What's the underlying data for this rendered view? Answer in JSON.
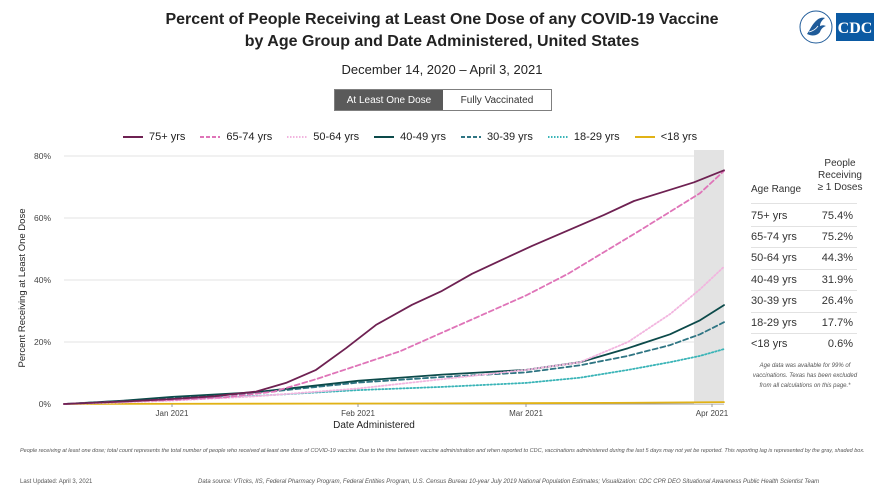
{
  "header": {
    "title_line1": "Percent of People Receiving at Least One Dose of any COVID-19 Vaccine",
    "title_line2": "by Age Group and Date Administered, United States",
    "date_range": "December 14, 2020 – April 3, 2021",
    "logo_text": "CDC"
  },
  "toggle": {
    "active_label": "At Least One Dose",
    "inactive_label": "Fully Vaccinated"
  },
  "legend": [
    {
      "label": "75+ yrs",
      "color": "#6e2152",
      "dash": "solid"
    },
    {
      "label": "65-74 yrs",
      "color": "#df74b8",
      "dash": "dashed"
    },
    {
      "label": "50-64 yrs",
      "color": "#f2b5df",
      "dash": "dotted"
    },
    {
      "label": "40-49 yrs",
      "color": "#0c4a4a",
      "dash": "solid"
    },
    {
      "label": "30-39 yrs",
      "color": "#2f7583",
      "dash": "dashed"
    },
    {
      "label": "18-29 yrs",
      "color": "#39b4b7",
      "dash": "dotted"
    },
    {
      "label": "<18 yrs",
      "color": "#e1b215",
      "dash": "solid"
    }
  ],
  "table": {
    "header_line1": "People",
    "header_line2": "Receiving",
    "header_line3": "≥ 1 Doses",
    "age_header": "Age Range",
    "rows": [
      {
        "age": "75+ yrs",
        "value": "75.4%"
      },
      {
        "age": "65-74 yrs",
        "value": "75.2%"
      },
      {
        "age": "50-64 yrs",
        "value": "44.3%"
      },
      {
        "age": "40-49 yrs",
        "value": "31.9%"
      },
      {
        "age": "30-39 yrs",
        "value": "26.4%"
      },
      {
        "age": "18-29 yrs",
        "value": "17.7%"
      },
      {
        "age": "<18 yrs",
        "value": "0.6%"
      }
    ],
    "note": "Age data was available for 99% of vaccinations. Texas has been excluded from all calculations on this page.*"
  },
  "footnote": "People receiving at least one dose; total count represents the total number of people who received at least one dose of COVID-19 vaccine. Due to the time between vaccine administration and when reported to CDC, vaccinations administered during the last 5 days may not yet be reported. This reporting lag is represented by the gray, shaded box.",
  "last_updated": "Last Updated: April 3, 2021",
  "data_source": "Data source: VTrcks, IIS, Federal Pharmacy Program, Federal Entities Program, U.S. Census Bureau 10-year July 2019 National Population Estimates; Visualization: CDC CPR DEO Situational Awareness Public Health Scientist Team",
  "chart_data": {
    "type": "line",
    "xlabel": "Date Administered",
    "ylabel": "Percent Receiving at Least One Dose",
    "x_range": [
      "2020-12-14",
      "2021-04-03"
    ],
    "ylim": [
      0,
      80
    ],
    "y_ticks": [
      "0%",
      "20%",
      "40%",
      "60%",
      "80%"
    ],
    "x_ticks": [
      {
        "date": "2021-01-01",
        "label": "Jan 2021"
      },
      {
        "date": "2021-02-01",
        "label": "Feb 2021"
      },
      {
        "date": "2021-03-01",
        "label": "Mar 2021"
      },
      {
        "date": "2021-04-01",
        "label": "Apr 2021"
      }
    ],
    "grid": "horizontal",
    "shaded_reporting_lag": [
      "2021-03-29",
      "2021-04-03"
    ],
    "series": [
      {
        "name": "75+ yrs",
        "color": "#6e2152",
        "dash": "solid",
        "points": [
          [
            "2020-12-14",
            0
          ],
          [
            "2020-12-24",
            0.8
          ],
          [
            "2021-01-01",
            1.6
          ],
          [
            "2021-01-08",
            2.5
          ],
          [
            "2021-01-15",
            4
          ],
          [
            "2021-01-20",
            6.8
          ],
          [
            "2021-01-25",
            11
          ],
          [
            "2021-01-30",
            18
          ],
          [
            "2021-02-04",
            25.5
          ],
          [
            "2021-02-10",
            32
          ],
          [
            "2021-02-15",
            36.5
          ],
          [
            "2021-02-20",
            42
          ],
          [
            "2021-02-25",
            46.5
          ],
          [
            "2021-03-02",
            51
          ],
          [
            "2021-03-08",
            56
          ],
          [
            "2021-03-14",
            61
          ],
          [
            "2021-03-19",
            65.5
          ],
          [
            "2021-03-24",
            68.5
          ],
          [
            "2021-03-29",
            71.5
          ],
          [
            "2021-04-03",
            75.4
          ]
        ]
      },
      {
        "name": "65-74 yrs",
        "color": "#df74b8",
        "dash": "dashed",
        "points": [
          [
            "2020-12-14",
            0
          ],
          [
            "2020-12-24",
            0.8
          ],
          [
            "2021-01-01",
            1.3
          ],
          [
            "2021-01-10",
            2.2
          ],
          [
            "2021-01-18",
            4
          ],
          [
            "2021-01-25",
            8
          ],
          [
            "2021-02-01",
            12.5
          ],
          [
            "2021-02-08",
            17
          ],
          [
            "2021-02-15",
            23
          ],
          [
            "2021-02-22",
            29
          ],
          [
            "2021-03-01",
            35
          ],
          [
            "2021-03-08",
            42
          ],
          [
            "2021-03-14",
            49
          ],
          [
            "2021-03-20",
            56
          ],
          [
            "2021-03-25",
            62
          ],
          [
            "2021-03-30",
            68
          ],
          [
            "2021-04-03",
            75.2
          ]
        ]
      },
      {
        "name": "50-64 yrs",
        "color": "#f2b5df",
        "dash": "dotted",
        "points": [
          [
            "2020-12-14",
            0
          ],
          [
            "2020-12-24",
            0.5
          ],
          [
            "2021-01-01",
            1.1
          ],
          [
            "2021-01-15",
            2.5
          ],
          [
            "2021-02-01",
            5
          ],
          [
            "2021-02-15",
            8
          ],
          [
            "2021-03-01",
            11
          ],
          [
            "2021-03-10",
            13.5
          ],
          [
            "2021-03-18",
            20
          ],
          [
            "2021-03-25",
            29
          ],
          [
            "2021-03-30",
            37
          ],
          [
            "2021-04-03",
            44.3
          ]
        ]
      },
      {
        "name": "40-49 yrs",
        "color": "#0c4a4a",
        "dash": "solid",
        "points": [
          [
            "2020-12-14",
            0
          ],
          [
            "2020-12-24",
            1.1
          ],
          [
            "2021-01-01",
            2.3
          ],
          [
            "2021-01-15",
            3.8
          ],
          [
            "2021-02-01",
            7.5
          ],
          [
            "2021-02-15",
            9.5
          ],
          [
            "2021-03-01",
            11
          ],
          [
            "2021-03-10",
            13.5
          ],
          [
            "2021-03-18",
            18
          ],
          [
            "2021-03-25",
            22.5
          ],
          [
            "2021-03-30",
            27
          ],
          [
            "2021-04-03",
            31.9
          ]
        ]
      },
      {
        "name": "30-39 yrs",
        "color": "#2f7583",
        "dash": "dashed",
        "points": [
          [
            "2020-12-14",
            0
          ],
          [
            "2020-12-24",
            1
          ],
          [
            "2021-01-01",
            2.1
          ],
          [
            "2021-01-15",
            3.5
          ],
          [
            "2021-02-01",
            6.9
          ],
          [
            "2021-02-15",
            8.7
          ],
          [
            "2021-03-01",
            10.2
          ],
          [
            "2021-03-10",
            12.5
          ],
          [
            "2021-03-18",
            15.5
          ],
          [
            "2021-03-25",
            19
          ],
          [
            "2021-03-30",
            22.5
          ],
          [
            "2021-04-03",
            26.4
          ]
        ]
      },
      {
        "name": "18-29 yrs",
        "color": "#39b4b7",
        "dash": "dotted",
        "points": [
          [
            "2020-12-14",
            0
          ],
          [
            "2020-12-24",
            0.6
          ],
          [
            "2021-01-01",
            1.5
          ],
          [
            "2021-01-15",
            2.6
          ],
          [
            "2021-02-01",
            4.5
          ],
          [
            "2021-02-15",
            5.5
          ],
          [
            "2021-03-01",
            6.8
          ],
          [
            "2021-03-10",
            8.5
          ],
          [
            "2021-03-18",
            11
          ],
          [
            "2021-03-25",
            13.5
          ],
          [
            "2021-03-30",
            15.5
          ],
          [
            "2021-04-03",
            17.7
          ]
        ]
      },
      {
        "name": "<18 yrs",
        "color": "#e1b215",
        "dash": "solid",
        "points": [
          [
            "2020-12-14",
            0
          ],
          [
            "2021-01-15",
            0.1
          ],
          [
            "2021-02-15",
            0.2
          ],
          [
            "2021-03-15",
            0.35
          ],
          [
            "2021-04-03",
            0.6
          ]
        ]
      }
    ]
  }
}
